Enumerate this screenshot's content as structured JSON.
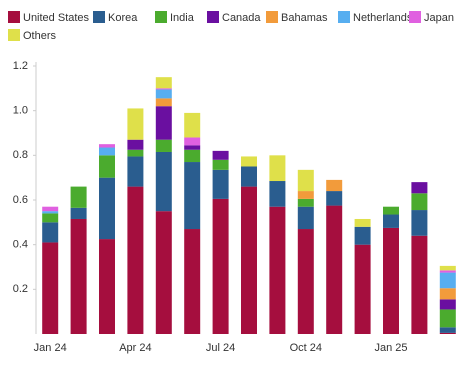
{
  "chart_data": {
    "type": "stacked-bar",
    "categories": [
      "Jan 24",
      null,
      null,
      "Apr 24",
      null,
      null,
      "Jul 24",
      null,
      null,
      "Oct 24",
      null,
      null,
      "Jan 25",
      null,
      null
    ],
    "series": [
      {
        "name": "United States",
        "color": "#a50e3e",
        "values": [
          0.41,
          0.515,
          0.425,
          0.66,
          0.55,
          0.47,
          0.605,
          0.66,
          0.57,
          0.47,
          0.575,
          0.4,
          0.475,
          0.44,
          0.005
        ]
      },
      {
        "name": "Korea",
        "color": "#2a5d8f",
        "values": [
          0.09,
          0.05,
          0.275,
          0.135,
          0.265,
          0.3,
          0.13,
          0.09,
          0.115,
          0.1,
          0.065,
          0.08,
          0.06,
          0.115,
          0.025
        ]
      },
      {
        "name": "India",
        "color": "#4bab2e",
        "values": [
          0.04,
          0.095,
          0.1,
          0.03,
          0.055,
          0.055,
          0.045,
          0,
          0,
          0.035,
          0,
          0,
          0.035,
          0.075,
          0.08
        ]
      },
      {
        "name": "Canada",
        "color": "#6a0fa0",
        "values": [
          0,
          0,
          0,
          0.045,
          0.15,
          0.02,
          0.04,
          0,
          0,
          0,
          0,
          0,
          0,
          0.05,
          0.045
        ]
      },
      {
        "name": "Bahamas",
        "color": "#f29b3b",
        "values": [
          0,
          0,
          0,
          0,
          0.035,
          0,
          0,
          0,
          0,
          0.035,
          0.05,
          0,
          0,
          0,
          0.05
        ]
      },
      {
        "name": "Netherlands",
        "color": "#57aef0",
        "values": [
          0.01,
          0,
          0.035,
          0,
          0.04,
          0,
          0,
          0,
          0,
          0,
          0,
          0,
          0,
          0,
          0.07
        ]
      },
      {
        "name": "Japan",
        "color": "#e060e0",
        "values": [
          0.02,
          0,
          0.015,
          0,
          0.005,
          0.035,
          0,
          0,
          0,
          0,
          0,
          0,
          0,
          0,
          0.01
        ]
      },
      {
        "name": "Others",
        "color": "#dfe04a",
        "values": [
          0,
          0,
          0,
          0.14,
          0.05,
          0.11,
          0,
          0.045,
          0.115,
          0.095,
          0,
          0.035,
          0,
          0,
          0.02
        ]
      }
    ],
    "ylim": [
      0,
      1.2
    ],
    "yticks": [
      0.2,
      0.4,
      0.6,
      0.8,
      {
        "value": 1.0,
        "label": "1.0"
      },
      1.2
    ]
  }
}
